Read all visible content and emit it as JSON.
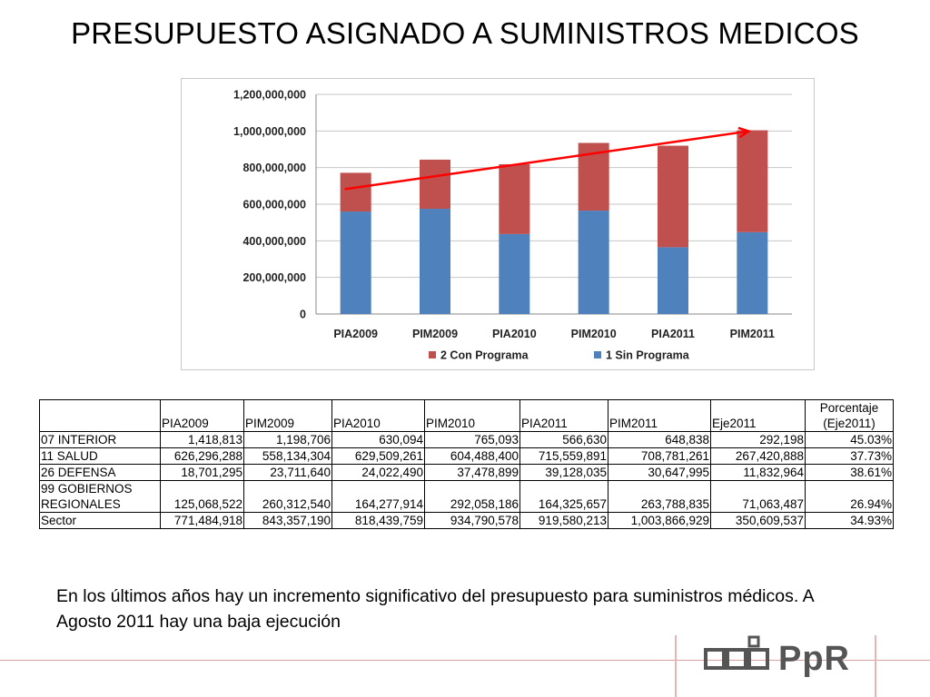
{
  "slide": {
    "title": "PRESUPUESTO ASIGNADO A SUMINISTROS MEDICOS",
    "conclusion": "En los últimos años hay un incremento significativo del presupuesto para suministros médicos. A Agosto 2011 hay una baja ejecución",
    "logo_text": "PpR"
  },
  "chart_data": {
    "type": "bar",
    "stacked": true,
    "categories": [
      "PIA2009",
      "PIM2009",
      "PIA2010",
      "PIM2010",
      "PIA2011",
      "PIM2011"
    ],
    "series": [
      {
        "name": "1 Sin Programa",
        "color": "#4f81bd",
        "values": [
          560000000,
          575000000,
          437000000,
          565000000,
          365000000,
          447000000
        ]
      },
      {
        "name": "2 Con Programa",
        "color": "#c0504d",
        "values": [
          211484918,
          268357190,
          381439759,
          369790578,
          554580213,
          556866929
        ]
      }
    ],
    "ylim": [
      0,
      1200000000
    ],
    "yticks": [
      "0",
      "200,000,000",
      "400,000,000",
      "600,000,000",
      "800,000,000",
      "1,000,000,000",
      "1,200,000,000"
    ],
    "grid": true,
    "legend": "bottom",
    "annotation": {
      "type": "trend-arrow",
      "color": "#ff0000"
    }
  },
  "table": {
    "headers": [
      "",
      "PIA2009",
      "PIM2009",
      "PIA2010",
      "PIM2010",
      "PIA2011",
      "PIM2011",
      "Eje2011"
    ],
    "pct_header": [
      "Porcentaje",
      "(Eje2011)"
    ],
    "rows": [
      {
        "label": "07 INTERIOR",
        "values": [
          "1,418,813",
          "1,198,706",
          "630,094",
          "765,093",
          "566,630",
          "648,838",
          "292,198",
          "45.03%"
        ]
      },
      {
        "label": "11 SALUD",
        "values": [
          "626,296,288",
          "558,134,304",
          "629,509,261",
          "604,488,400",
          "715,559,891",
          "708,781,261",
          "267,420,888",
          "37.73%"
        ]
      },
      {
        "label": "26 DEFENSA",
        "values": [
          "18,701,295",
          "23,711,640",
          "24,022,490",
          "37,478,899",
          "39,128,035",
          "30,647,995",
          "11,832,964",
          "38.61%"
        ]
      },
      {
        "label": "Sector",
        "values": [
          "771,484,918",
          "843,357,190",
          "818,439,759",
          "934,790,578",
          "919,580,213",
          "1,003,866,929",
          "350,609,537",
          "34.93%"
        ]
      }
    ],
    "gob_label": [
      "99 GOBIERNOS",
      "REGIONALES"
    ],
    "gob_values": [
      "125,068,522",
      "260,312,540",
      "164,277,914",
      "292,058,186",
      "164,325,657",
      "263,788,835",
      "71,063,487",
      "26.94%"
    ]
  }
}
